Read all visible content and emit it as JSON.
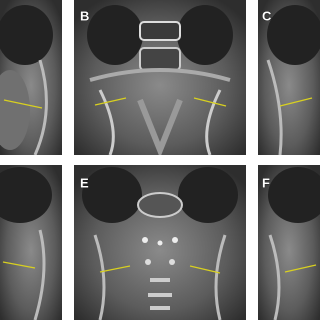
{
  "panels": [
    {
      "label": "B"
    },
    {
      "label": "C"
    },
    {
      "label": "E"
    },
    {
      "label": "F"
    }
  ]
}
